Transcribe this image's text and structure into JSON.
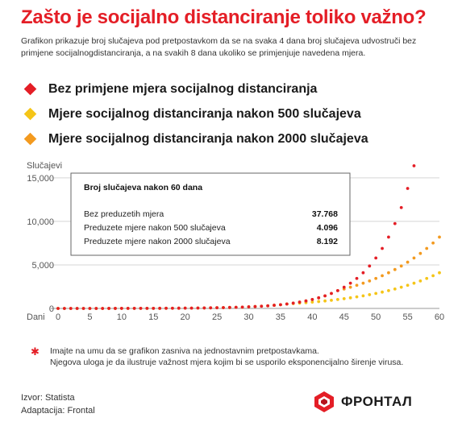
{
  "title": "Zašto je socijalno distanciranje toliko važno?",
  "subtitle": "Grafikon prikazuje broj slučajeva  pod pretpostavkom da se na svaka 4 dana broj slučajeva udvostruči bez primjene socijalnogdistanciranja, a na svakih 8 dana ukoliko se primjenjuje navedena mjera.",
  "legend": [
    {
      "label": "Bez primjene mjera  socijalnog distanciranja",
      "color": "#e41e26"
    },
    {
      "label": "Mjere socijalnog distanciranja nakon 500 slučajeva",
      "color": "#f5c518"
    },
    {
      "label": "Mjere socijalnog distanciranja nakon 2000 slučajeva",
      "color": "#f39a1f"
    }
  ],
  "chart_data": {
    "type": "scatter",
    "ylabel": "Slučajevi",
    "xlabel": "Dani",
    "xlim": [
      0,
      60
    ],
    "ylim": [
      0,
      16000
    ],
    "x_ticks": [
      0,
      5,
      10,
      15,
      20,
      25,
      30,
      35,
      40,
      45,
      50,
      55,
      60
    ],
    "y_ticks": [
      0,
      5000,
      10000,
      15000
    ],
    "y_tick_labels": [
      "0",
      "5,000",
      "10,000",
      "15,000"
    ],
    "grid": "horizontal",
    "series": [
      {
        "name": "Bez primjene mjera  socijalnog distanciranja",
        "color": "#e41e26",
        "x": [
          0,
          1,
          2,
          3,
          4,
          5,
          6,
          7,
          8,
          9,
          10,
          11,
          12,
          13,
          14,
          15,
          16,
          17,
          18,
          19,
          20,
          21,
          22,
          23,
          24,
          25,
          26,
          27,
          28,
          29,
          30,
          31,
          32,
          33,
          34,
          35,
          36,
          37,
          38,
          39,
          40,
          41,
          42,
          43,
          44,
          45,
          46,
          47,
          48,
          49,
          50,
          51,
          52,
          53,
          54,
          55,
          56
        ],
        "y": [
          1,
          1,
          1,
          2,
          2,
          2,
          3,
          3,
          4,
          5,
          6,
          7,
          8,
          10,
          11,
          13,
          16,
          19,
          23,
          27,
          32,
          38,
          45,
          54,
          64,
          76,
          91,
          108,
          128,
          152,
          181,
          215,
          256,
          304,
          362,
          431,
          512,
          609,
          724,
          861,
          1024,
          1218,
          1448,
          1722,
          2048,
          2435,
          2896,
          3444,
          4096,
          4871,
          5793,
          6889,
          8192,
          9742,
          11585,
          13777,
          16384
        ]
      },
      {
        "name": "Mjere socijalnog distanciranja nakon 500 slučajeva",
        "color": "#f5c518",
        "x": [
          0,
          1,
          2,
          3,
          4,
          5,
          6,
          7,
          8,
          9,
          10,
          11,
          12,
          13,
          14,
          15,
          16,
          17,
          18,
          19,
          20,
          21,
          22,
          23,
          24,
          25,
          26,
          27,
          28,
          29,
          30,
          31,
          32,
          33,
          34,
          35,
          36,
          37,
          38,
          39,
          40,
          41,
          42,
          43,
          44,
          45,
          46,
          47,
          48,
          49,
          50,
          51,
          52,
          53,
          54,
          55,
          56,
          57,
          58,
          59,
          60
        ],
        "y": [
          1,
          1,
          1,
          2,
          2,
          2,
          3,
          3,
          4,
          5,
          6,
          7,
          8,
          10,
          11,
          13,
          16,
          19,
          23,
          27,
          32,
          38,
          45,
          54,
          64,
          76,
          91,
          108,
          128,
          152,
          181,
          215,
          256,
          304,
          362,
          431,
          512,
          558,
          609,
          664,
          724,
          790,
          861,
          939,
          1024,
          1117,
          1218,
          1328,
          1448,
          1579,
          1722,
          1878,
          2048,
          2233,
          2435,
          2656,
          2896,
          3158,
          3444,
          3756,
          4096
        ]
      },
      {
        "name": "Mjere socijalnog distanciranja nakon 2000 slučajeva",
        "color": "#f39a1f",
        "x": [
          0,
          1,
          2,
          3,
          4,
          5,
          6,
          7,
          8,
          9,
          10,
          11,
          12,
          13,
          14,
          15,
          16,
          17,
          18,
          19,
          20,
          21,
          22,
          23,
          24,
          25,
          26,
          27,
          28,
          29,
          30,
          31,
          32,
          33,
          34,
          35,
          36,
          37,
          38,
          39,
          40,
          41,
          42,
          43,
          44,
          45,
          46,
          47,
          48,
          49,
          50,
          51,
          52,
          53,
          54,
          55,
          56,
          57,
          58,
          59,
          60
        ],
        "y": [
          1,
          1,
          1,
          2,
          2,
          2,
          3,
          3,
          4,
          5,
          6,
          7,
          8,
          10,
          11,
          13,
          16,
          19,
          23,
          27,
          32,
          38,
          45,
          54,
          64,
          76,
          91,
          108,
          128,
          152,
          181,
          215,
          256,
          304,
          362,
          431,
          512,
          609,
          724,
          861,
          1024,
          1218,
          1448,
          1722,
          2048,
          2233,
          2435,
          2656,
          2896,
          3158,
          3444,
          3756,
          4096,
          4467,
          4871,
          5312,
          5793,
          6317,
          6889,
          7512,
          8192
        ]
      }
    ],
    "infobox": {
      "title": "Broj slučajeva nakon 60 dana",
      "rows": [
        {
          "label": "Bez preduzetih mjera",
          "value": "37.768"
        },
        {
          "label": "Preduzete mjere nakon 500 slučajeva",
          "value": "4.096"
        },
        {
          "label": "Preduzete mjere nakon 2000 slučajeva",
          "value": "8.192"
        }
      ]
    }
  },
  "note": {
    "line1": "Imajte na umu da se grafikon zasniva na jednostavnim pretpostavkama.",
    "line2": "Njegova uloga je da ilustruje važnost mjera kojim bi se usporilo eksponencijalno širenje virusa."
  },
  "source": {
    "line1": "Izvor: Statista",
    "line2": "Adaptacija: Frontal"
  },
  "logo": {
    "text": "ФРОНТАЛ",
    "color": "#e41e26"
  }
}
